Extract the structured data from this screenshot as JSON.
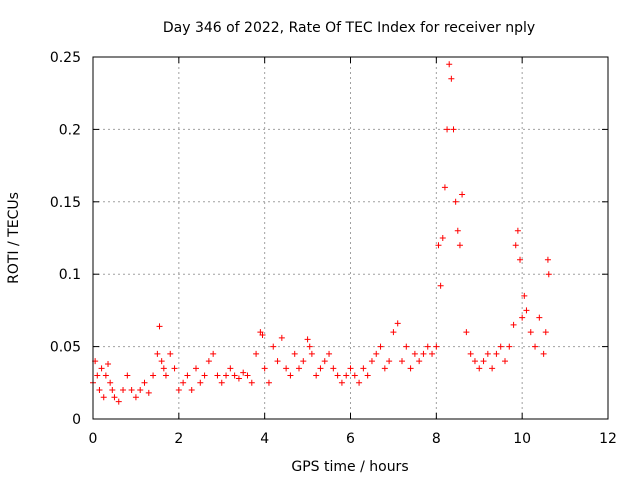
{
  "chart_data": {
    "type": "scatter",
    "title": "Day 346 of 2022, Rate Of TEC Index for receiver nply",
    "xlabel": "GPS time / hours",
    "ylabel": "ROTI / TECUs",
    "xlim": [
      0,
      12
    ],
    "ylim": [
      0,
      0.25
    ],
    "xticks": [
      0,
      2,
      4,
      6,
      8,
      10,
      12
    ],
    "xtick_labels": [
      "0",
      "2",
      "4",
      "6",
      "8",
      "10",
      "12"
    ],
    "yticks": [
      0,
      0.05,
      0.1,
      0.15,
      0.2,
      0.25
    ],
    "ytick_labels": [
      "0",
      "0.05",
      "0.1",
      "0.15",
      "0.2",
      "0.25"
    ],
    "grid": true,
    "marker": "+",
    "marker_color": "#ff0000",
    "series": [
      {
        "name": "ROTI",
        "x": [
          0.0,
          0.05,
          0.1,
          0.15,
          0.2,
          0.25,
          0.3,
          0.35,
          0.4,
          0.45,
          0.5,
          0.6,
          0.7,
          0.8,
          0.9,
          1.0,
          1.1,
          1.2,
          1.3,
          1.4,
          1.5,
          1.55,
          1.6,
          1.65,
          1.7,
          1.8,
          1.9,
          2.0,
          2.1,
          2.2,
          2.3,
          2.4,
          2.5,
          2.6,
          2.7,
          2.8,
          2.9,
          3.0,
          3.1,
          3.2,
          3.3,
          3.4,
          3.5,
          3.6,
          3.7,
          3.8,
          3.9,
          3.95,
          4.0,
          4.1,
          4.2,
          4.3,
          4.4,
          4.5,
          4.6,
          4.7,
          4.8,
          4.9,
          5.0,
          5.05,
          5.1,
          5.2,
          5.3,
          5.4,
          5.5,
          5.6,
          5.7,
          5.8,
          5.9,
          6.0,
          6.1,
          6.2,
          6.3,
          6.4,
          6.5,
          6.6,
          6.7,
          6.8,
          6.9,
          7.0,
          7.1,
          7.2,
          7.3,
          7.4,
          7.5,
          7.6,
          7.7,
          7.8,
          7.9,
          8.0,
          8.05,
          8.1,
          8.15,
          8.2,
          8.25,
          8.3,
          8.35,
          8.4,
          8.45,
          8.5,
          8.55,
          8.6,
          8.7,
          8.8,
          8.9,
          9.0,
          9.1,
          9.2,
          9.3,
          9.4,
          9.5,
          9.6,
          9.7,
          9.8,
          9.85,
          9.9,
          9.95,
          10.0,
          10.05,
          10.1,
          10.2,
          10.3,
          10.4,
          10.5,
          10.55,
          10.6,
          10.62
        ],
        "y": [
          0.025,
          0.04,
          0.03,
          0.02,
          0.035,
          0.015,
          0.03,
          0.038,
          0.025,
          0.02,
          0.015,
          0.012,
          0.02,
          0.03,
          0.02,
          0.015,
          0.02,
          0.025,
          0.018,
          0.03,
          0.045,
          0.064,
          0.04,
          0.035,
          0.03,
          0.045,
          0.035,
          0.02,
          0.025,
          0.03,
          0.02,
          0.035,
          0.025,
          0.03,
          0.04,
          0.045,
          0.03,
          0.025,
          0.03,
          0.035,
          0.03,
          0.028,
          0.032,
          0.03,
          0.025,
          0.045,
          0.06,
          0.058,
          0.035,
          0.025,
          0.05,
          0.04,
          0.056,
          0.035,
          0.03,
          0.045,
          0.035,
          0.04,
          0.055,
          0.05,
          0.045,
          0.03,
          0.035,
          0.04,
          0.045,
          0.035,
          0.03,
          0.025,
          0.03,
          0.035,
          0.03,
          0.025,
          0.035,
          0.03,
          0.04,
          0.045,
          0.05,
          0.035,
          0.04,
          0.06,
          0.066,
          0.04,
          0.05,
          0.035,
          0.045,
          0.04,
          0.045,
          0.05,
          0.045,
          0.05,
          0.12,
          0.092,
          0.125,
          0.16,
          0.2,
          0.245,
          0.235,
          0.2,
          0.15,
          0.13,
          0.12,
          0.155,
          0.06,
          0.045,
          0.04,
          0.035,
          0.04,
          0.045,
          0.035,
          0.045,
          0.05,
          0.04,
          0.05,
          0.065,
          0.12,
          0.13,
          0.11,
          0.07,
          0.085,
          0.075,
          0.06,
          0.05,
          0.07,
          0.045,
          0.06,
          0.11,
          0.1
        ]
      }
    ]
  }
}
